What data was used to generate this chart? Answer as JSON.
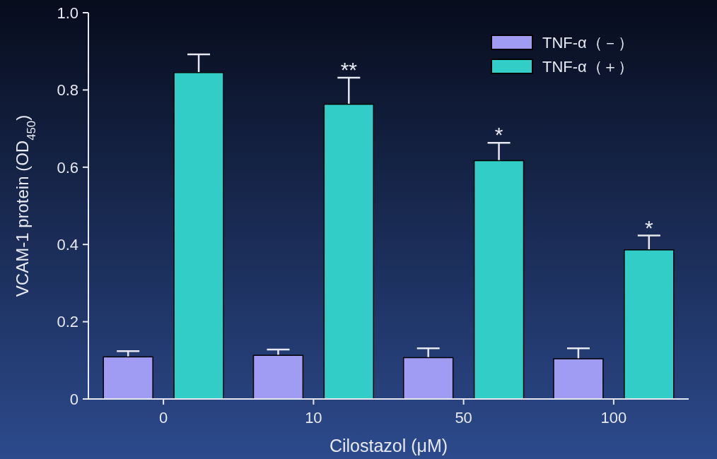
{
  "chart_data": {
    "type": "bar",
    "xlabel": "Cilostazol (μM)",
    "ylabel": "VCAM-1 protein (OD$_{450}$)",
    "categories": [
      "0",
      "10",
      "50",
      "100"
    ],
    "series": [
      {
        "name": "TNF-α（－）",
        "color": "#a09cf4",
        "values": [
          0.109,
          0.113,
          0.107,
          0.104
        ],
        "errors": [
          0.015,
          0.015,
          0.024,
          0.027
        ]
      },
      {
        "name": "TNF-α（＋）",
        "color": "#33cdc8",
        "values": [
          0.845,
          0.763,
          0.617,
          0.386
        ],
        "errors": [
          0.047,
          0.069,
          0.046,
          0.037
        ]
      }
    ],
    "ylim": [
      0,
      1
    ],
    "yticks": [
      0,
      0.2,
      0.4,
      0.6,
      0.8,
      {
        "value": 1,
        "label": "1.0"
      }
    ],
    "grid": false,
    "legend": "top right",
    "annotations": [
      "**",
      "*",
      "*"
    ]
  }
}
